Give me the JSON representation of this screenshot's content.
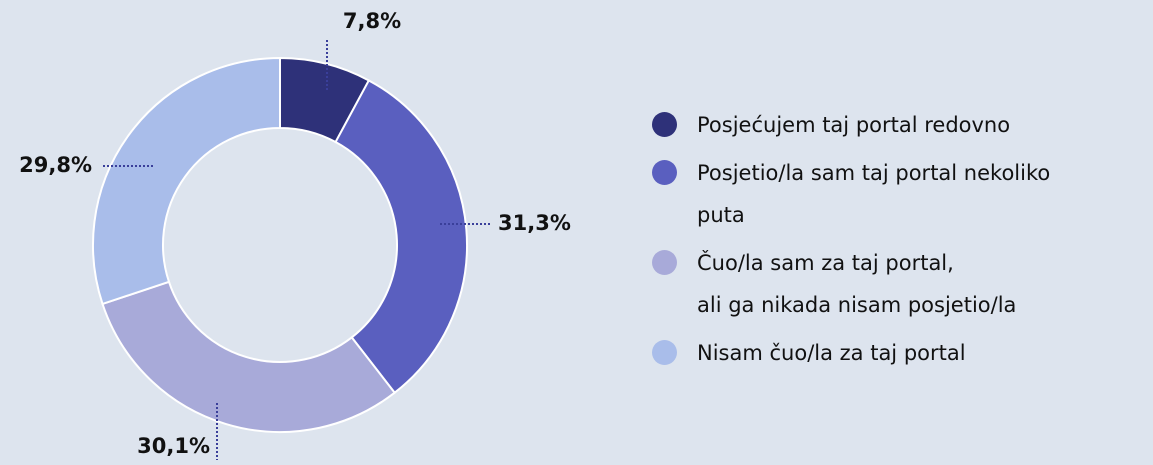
{
  "chart_data": {
    "type": "donut",
    "series": [
      {
        "name": "Posjećujem taj portal redovno",
        "color": "#2e3179",
        "values": [
          7.8
        ],
        "value_labels": [
          "7,8%"
        ]
      },
      {
        "name": "Posjetio/la sam taj portal nekoliko\nputa",
        "color": "#5a5fbf",
        "values": [
          31.3
        ],
        "value_labels": [
          "31,3%"
        ]
      },
      {
        "name": "Čuo/la sam za taj portal,\nali ga nikada nisam posjetio/la",
        "color": "#a8aad9",
        "values": [
          30.1
        ],
        "value_labels": [
          "30,1%"
        ]
      },
      {
        "name": "Nisam čuo/la za taj portal",
        "color": "#a9bdea",
        "values": [
          29.8
        ],
        "value_labels": [
          "29,8%"
        ]
      }
    ]
  }
}
